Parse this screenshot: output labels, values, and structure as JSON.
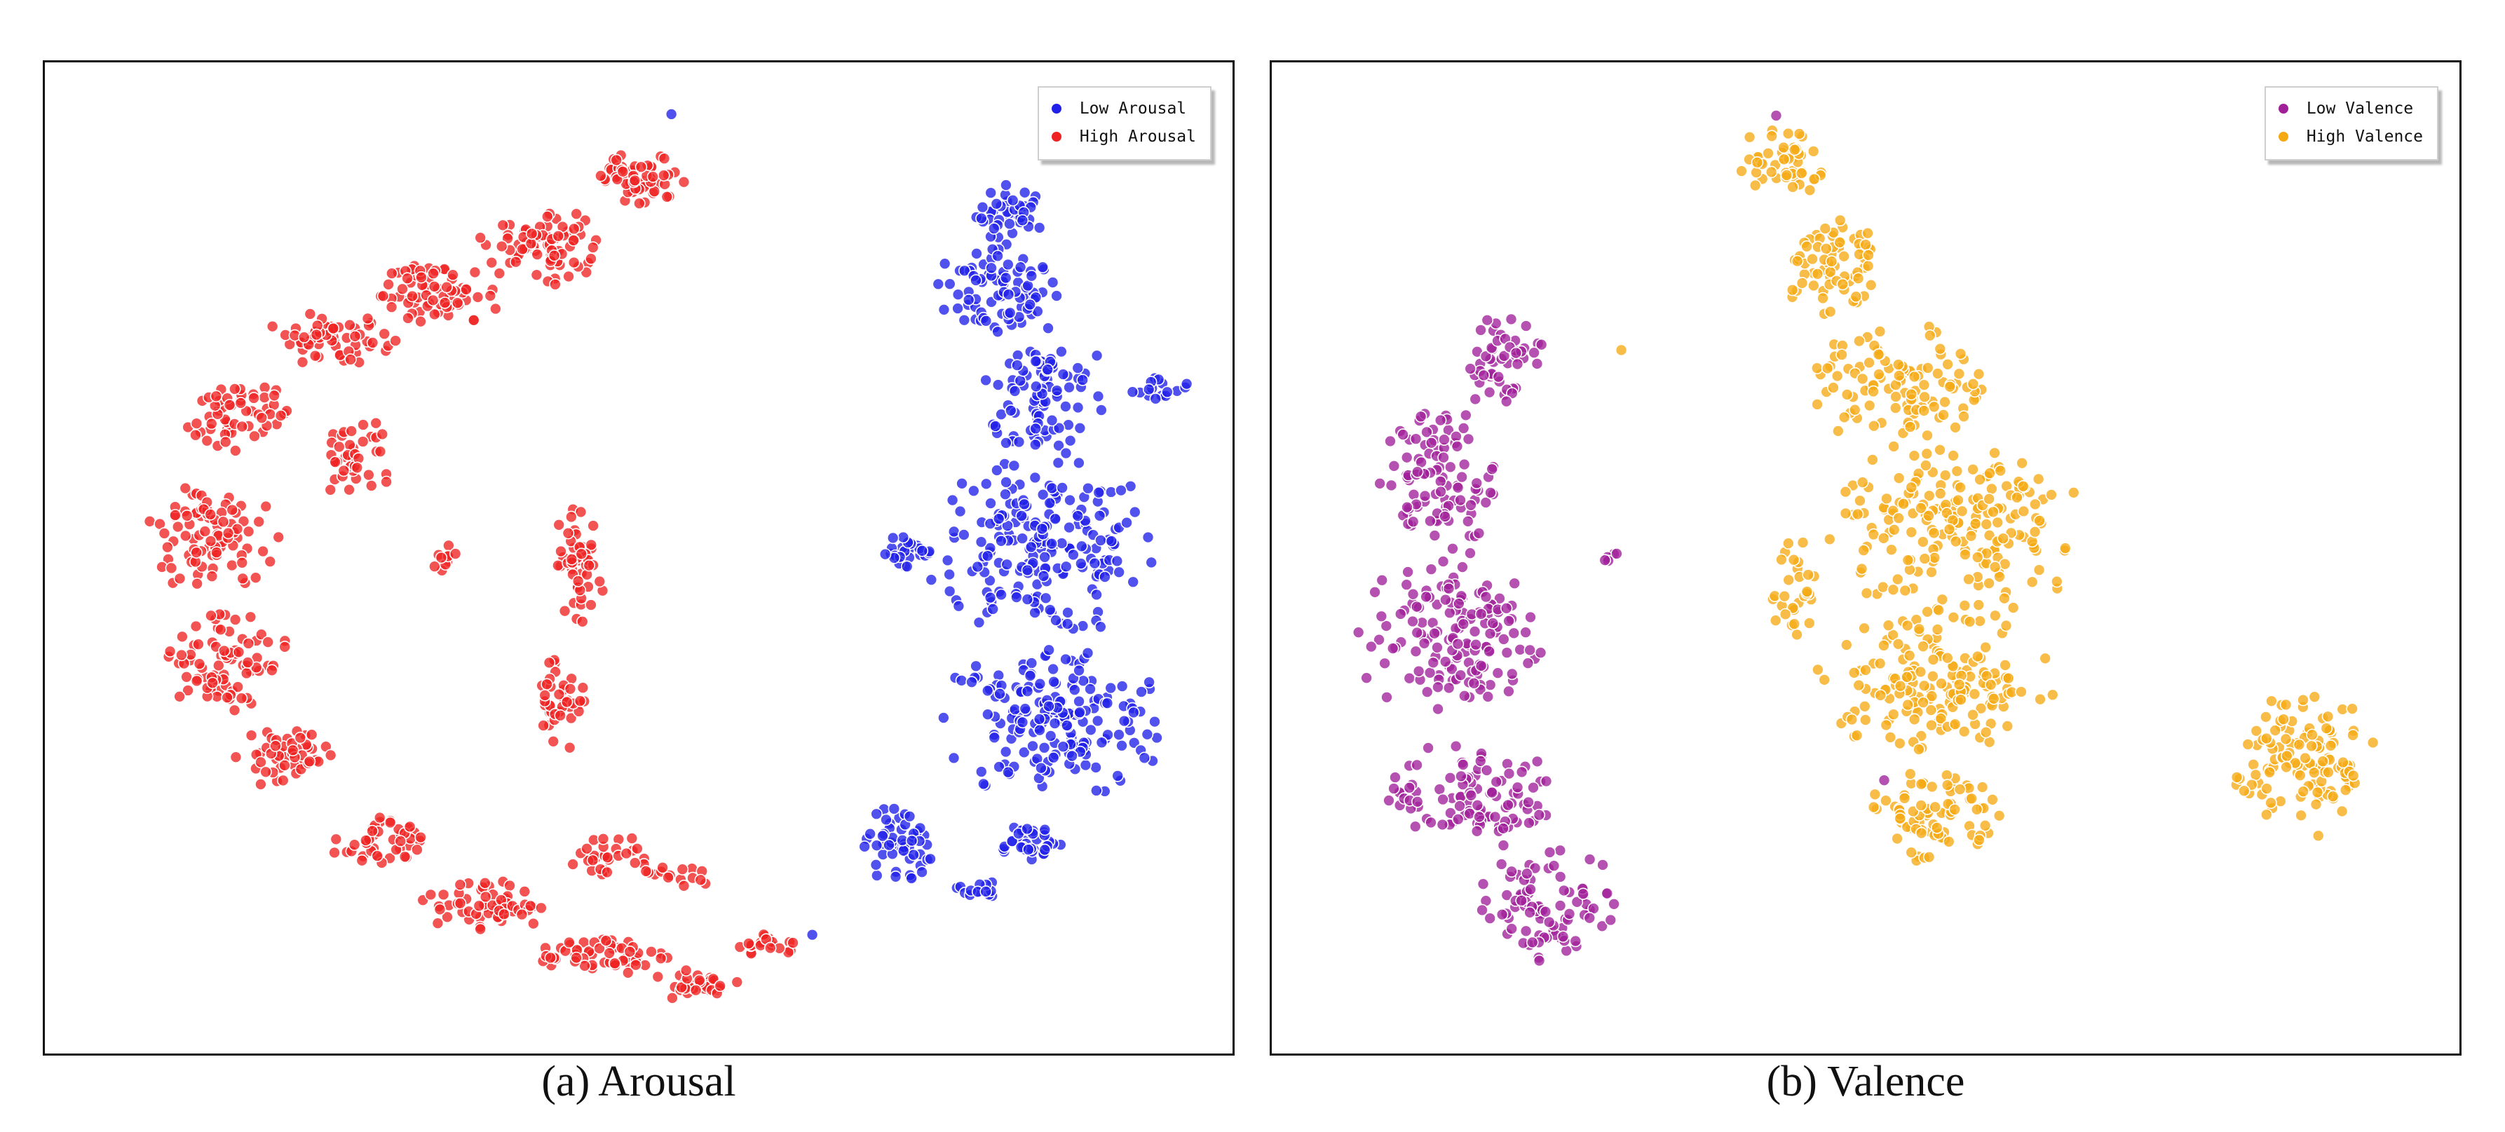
{
  "captions": {
    "a": "(a) Arousal",
    "b": "(b) Valence"
  },
  "chart_data": [
    {
      "type": "scatter",
      "title": "",
      "xlabel": "",
      "ylabel": "",
      "axis_ticks": "none",
      "grid": false,
      "legend_placement": "top-right",
      "xlim": [
        0,
        100
      ],
      "ylim": [
        0,
        100
      ],
      "legend": [
        "Low Arousal",
        "High Arousal"
      ],
      "series": [
        {
          "name": "Low Arousal",
          "color": "#2020e8",
          "clusters": [
            {
              "cx": 81.5,
              "cy": 84.5,
              "rx": 2.8,
              "ry": 2.8,
              "n": 40
            },
            {
              "cx": 80.0,
              "cy": 77.0,
              "rx": 5.0,
              "ry": 4.5,
              "n": 80
            },
            {
              "cx": 84.0,
              "cy": 66.5,
              "rx": 5.0,
              "ry": 7.0,
              "n": 90
            },
            {
              "cx": 94.0,
              "cy": 67.0,
              "rx": 2.2,
              "ry": 1.2,
              "n": 16
            },
            {
              "cx": 72.5,
              "cy": 50.5,
              "rx": 2.2,
              "ry": 2.0,
              "n": 25
            },
            {
              "cx": 84.0,
              "cy": 51.0,
              "rx": 9.0,
              "ry": 8.0,
              "n": 200
            },
            {
              "cx": 85.0,
              "cy": 33.5,
              "rx": 9.0,
              "ry": 7.0,
              "n": 180
            },
            {
              "cx": 82.5,
              "cy": 21.5,
              "rx": 3.0,
              "ry": 1.8,
              "n": 35
            },
            {
              "cx": 71.8,
              "cy": 21.0,
              "rx": 2.6,
              "ry": 3.8,
              "n": 55
            },
            {
              "cx": 78.5,
              "cy": 16.5,
              "rx": 1.6,
              "ry": 1.0,
              "n": 14
            },
            {
              "cx": 52.8,
              "cy": 94.8,
              "rx": 0.2,
              "ry": 0.2,
              "n": 1
            },
            {
              "cx": 64.5,
              "cy": 12.0,
              "rx": 0.2,
              "ry": 0.2,
              "n": 1
            }
          ]
        },
        {
          "name": "High Arousal",
          "color": "#ee2222",
          "clusters": [
            {
              "cx": 50.0,
              "cy": 88.0,
              "rx": 4.0,
              "ry": 2.5,
              "n": 60
            },
            {
              "cx": 42.0,
              "cy": 81.5,
              "rx": 5.0,
              "ry": 3.5,
              "n": 80
            },
            {
              "cx": 33.0,
              "cy": 76.5,
              "rx": 5.0,
              "ry": 3.0,
              "n": 70
            },
            {
              "cx": 24.0,
              "cy": 72.0,
              "rx": 5.0,
              "ry": 2.5,
              "n": 60
            },
            {
              "cx": 16.0,
              "cy": 64.0,
              "rx": 4.0,
              "ry": 4.0,
              "n": 60
            },
            {
              "cx": 26.0,
              "cy": 60.0,
              "rx": 3.0,
              "ry": 4.0,
              "n": 40
            },
            {
              "cx": 14.0,
              "cy": 52.0,
              "rx": 5.0,
              "ry": 6.0,
              "n": 90
            },
            {
              "cx": 15.0,
              "cy": 40.0,
              "rx": 5.0,
              "ry": 5.0,
              "n": 80
            },
            {
              "cx": 20.0,
              "cy": 30.0,
              "rx": 4.0,
              "ry": 3.0,
              "n": 50
            },
            {
              "cx": 28.0,
              "cy": 21.0,
              "rx": 3.5,
              "ry": 2.5,
              "n": 45
            },
            {
              "cx": 37.0,
              "cy": 15.0,
              "rx": 5.0,
              "ry": 2.5,
              "n": 60
            },
            {
              "cx": 47.0,
              "cy": 10.0,
              "rx": 5.0,
              "ry": 2.0,
              "n": 55
            },
            {
              "cx": 55.0,
              "cy": 7.0,
              "rx": 3.5,
              "ry": 1.5,
              "n": 35
            },
            {
              "cx": 61.0,
              "cy": 11.0,
              "rx": 2.5,
              "ry": 1.2,
              "n": 22
            },
            {
              "cx": 45.0,
              "cy": 49.0,
              "rx": 2.0,
              "ry": 6.0,
              "n": 50
            },
            {
              "cx": 43.5,
              "cy": 36.0,
              "rx": 2.0,
              "ry": 5.0,
              "n": 40
            },
            {
              "cx": 47.0,
              "cy": 20.0,
              "rx": 4.0,
              "ry": 2.0,
              "n": 30
            },
            {
              "cx": 53.0,
              "cy": 18.0,
              "rx": 3.0,
              "ry": 1.5,
              "n": 15
            },
            {
              "cx": 33.5,
              "cy": 50.0,
              "rx": 1.5,
              "ry": 1.5,
              "n": 10
            }
          ]
        }
      ]
    },
    {
      "type": "scatter",
      "title": "",
      "xlabel": "",
      "ylabel": "",
      "axis_ticks": "none",
      "grid": false,
      "legend_placement": "top-right",
      "xlim": [
        0,
        100
      ],
      "ylim": [
        0,
        100
      ],
      "legend": [
        "Low Valence",
        "High Valence"
      ],
      "series": [
        {
          "name": "Low Valence",
          "color": "#a0209a",
          "clusters": [
            {
              "cx": 19.0,
              "cy": 70.0,
              "rx": 3.5,
              "ry": 4.0,
              "n": 50
            },
            {
              "cx": 14.0,
              "cy": 58.0,
              "rx": 4.5,
              "ry": 7.0,
              "n": 100
            },
            {
              "cx": 15.0,
              "cy": 42.0,
              "rx": 7.0,
              "ry": 8.0,
              "n": 150
            },
            {
              "cx": 17.0,
              "cy": 26.0,
              "rx": 6.5,
              "ry": 5.0,
              "n": 100
            },
            {
              "cx": 23.5,
              "cy": 15.0,
              "rx": 5.5,
              "ry": 5.0,
              "n": 90
            },
            {
              "cx": 28.5,
              "cy": 50.5,
              "rx": 0.8,
              "ry": 0.8,
              "n": 5
            },
            {
              "cx": 42.5,
              "cy": 94.5,
              "rx": 0.2,
              "ry": 0.2,
              "n": 1
            },
            {
              "cx": 51.5,
              "cy": 27.5,
              "rx": 0.2,
              "ry": 0.2,
              "n": 1
            }
          ]
        },
        {
          "name": "High Valence",
          "color": "#f5aa14",
          "clusters": [
            {
              "cx": 43.0,
              "cy": 90.0,
              "rx": 3.5,
              "ry": 3.5,
              "n": 50
            },
            {
              "cx": 47.0,
              "cy": 80.0,
              "rx": 4.0,
              "ry": 5.0,
              "n": 70
            },
            {
              "cx": 53.0,
              "cy": 67.0,
              "rx": 7.0,
              "ry": 6.0,
              "n": 110
            },
            {
              "cx": 58.0,
              "cy": 53.0,
              "rx": 10.0,
              "ry": 8.0,
              "n": 190
            },
            {
              "cx": 56.0,
              "cy": 37.5,
              "rx": 9.5,
              "ry": 7.0,
              "n": 170
            },
            {
              "cx": 56.0,
              "cy": 24.0,
              "rx": 6.0,
              "ry": 4.5,
              "n": 80
            },
            {
              "cx": 44.0,
              "cy": 46.5,
              "rx": 1.8,
              "ry": 5.0,
              "n": 30
            },
            {
              "cx": 87.0,
              "cy": 29.5,
              "rx": 5.5,
              "ry": 7.5,
              "n": 120
            },
            {
              "cx": 29.5,
              "cy": 71.0,
              "rx": 0.3,
              "ry": 0.3,
              "n": 1
            }
          ]
        }
      ]
    }
  ]
}
